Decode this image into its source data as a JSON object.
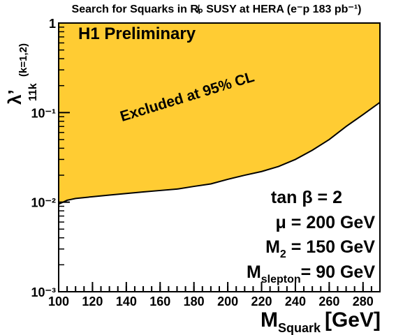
{
  "chart_data": {
    "type": "exclusion",
    "title": "Search for Squarks in R̸ₚ SUSY at HERA (e⁻p 183 pb⁻¹)",
    "x_label": {
      "main": "M",
      "sub": "Squark",
      "unit": "[GeV]"
    },
    "y_label": {
      "main": "λ’",
      "sub": "11k",
      "note": "(k=1,2)"
    },
    "annotations": {
      "experiment": "H1 Preliminary",
      "region": "Excluded at 95% CL"
    },
    "parameters": [
      {
        "main": "tan β = 2"
      },
      {
        "main": "μ  = 200 GeV"
      },
      {
        "main": "M",
        "sub": "2",
        "rest": " = 150 GeV"
      },
      {
        "main": "M",
        "sub": "slepton",
        "rest": "= 90 GeV"
      }
    ],
    "x": [
      100,
      105,
      110,
      120,
      130,
      140,
      150,
      160,
      170,
      180,
      190,
      200,
      210,
      220,
      230,
      240,
      250,
      260,
      270,
      280,
      290
    ],
    "values": [
      0.0095,
      0.0105,
      0.011,
      0.0115,
      0.012,
      0.0125,
      0.013,
      0.0135,
      0.014,
      0.015,
      0.016,
      0.018,
      0.02,
      0.022,
      0.025,
      0.03,
      0.038,
      0.05,
      0.07,
      0.095,
      0.13
    ],
    "color": "#ffcc33",
    "xlim": [
      100,
      290
    ],
    "xticks": [
      100,
      120,
      140,
      160,
      180,
      200,
      220,
      240,
      260,
      280
    ],
    "ylim": [
      0.001,
      1
    ],
    "log_y": true,
    "yticks": [
      {
        "value": 0.001,
        "label": "10⁻³"
      },
      {
        "value": 0.01,
        "label": "10⁻²"
      },
      {
        "value": 0.1,
        "label": "10⁻¹"
      },
      1
    ]
  }
}
